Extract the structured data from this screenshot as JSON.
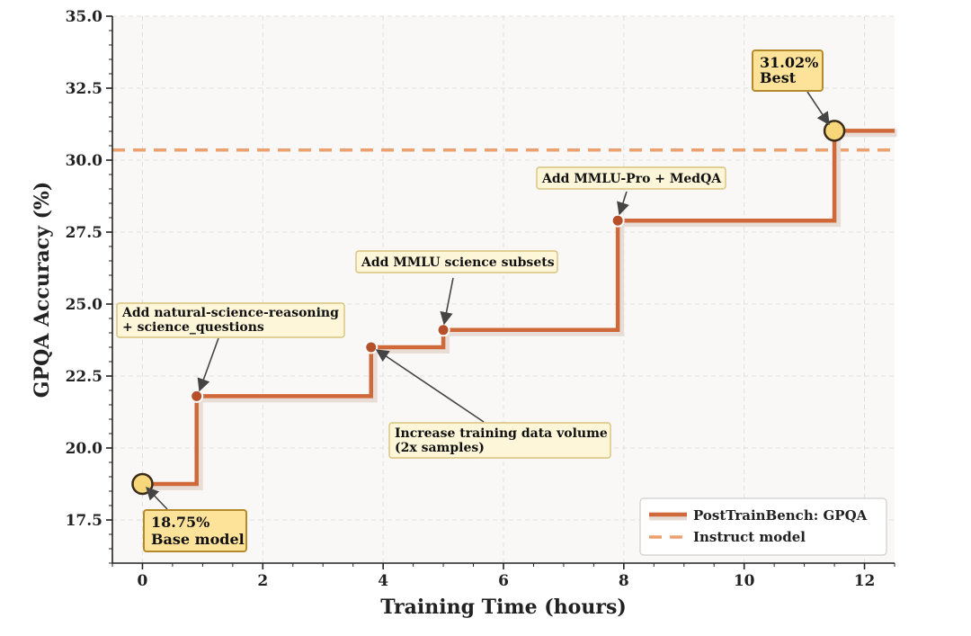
{
  "chart_data": {
    "type": "line",
    "xlabel": "Training Time (hours)",
    "ylabel": "GPQA Accuracy (%)",
    "xlim": [
      -0.5,
      12.5
    ],
    "ylim": [
      16.0,
      35.0
    ],
    "x_ticks": [
      0,
      2,
      4,
      6,
      8,
      10,
      12
    ],
    "y_ticks": [
      17.5,
      20.0,
      22.5,
      25.0,
      27.5,
      30.0,
      32.5,
      35.0
    ],
    "x_tick_labels": [
      "0",
      "2",
      "4",
      "6",
      "8",
      "10",
      "12"
    ],
    "y_tick_labels": [
      "17.5",
      "20.0",
      "22.5",
      "25.0",
      "27.5",
      "30.0",
      "32.5",
      "35.0"
    ],
    "grid": true,
    "legend_position": "bottom-right",
    "series": [
      {
        "name": "PostTrainBench: GPQA",
        "style": "step",
        "color": "#d0693a",
        "x": [
          0,
          0.9,
          3.8,
          5.0,
          7.9,
          11.5,
          12.5
        ],
        "y": [
          18.75,
          21.8,
          23.5,
          24.1,
          27.9,
          31.02,
          31.02
        ]
      },
      {
        "name": "Instruct model",
        "style": "dashed",
        "color": "#eba06e",
        "y": 30.35
      }
    ],
    "markers": [
      {
        "x": 0,
        "y": 18.75,
        "kind": "highlight"
      },
      {
        "x": 0.9,
        "y": 21.8,
        "kind": "point"
      },
      {
        "x": 3.8,
        "y": 23.5,
        "kind": "point"
      },
      {
        "x": 5.0,
        "y": 24.1,
        "kind": "point"
      },
      {
        "x": 7.9,
        "y": 27.9,
        "kind": "point"
      },
      {
        "x": 11.5,
        "y": 31.02,
        "kind": "highlight"
      }
    ],
    "annotations": [
      {
        "lines": [
          "18.75%",
          "Base model"
        ],
        "style": "highlight",
        "target": [
          0,
          18.75
        ]
      },
      {
        "lines": [
          "Add natural-science-reasoning",
          "+ science_questions"
        ],
        "style": "note",
        "target": [
          0.9,
          21.8
        ]
      },
      {
        "lines": [
          "Increase training data volume",
          "(2x samples)"
        ],
        "style": "note",
        "target": [
          3.8,
          23.5
        ]
      },
      {
        "lines": [
          "Add MMLU science subsets"
        ],
        "style": "note",
        "target": [
          5.0,
          24.1
        ]
      },
      {
        "lines": [
          "Add MMLU-Pro + MedQA"
        ],
        "style": "note",
        "target": [
          7.9,
          27.9
        ]
      },
      {
        "lines": [
          "31.02%",
          "Best"
        ],
        "style": "highlight",
        "target": [
          11.5,
          31.02
        ]
      }
    ]
  }
}
